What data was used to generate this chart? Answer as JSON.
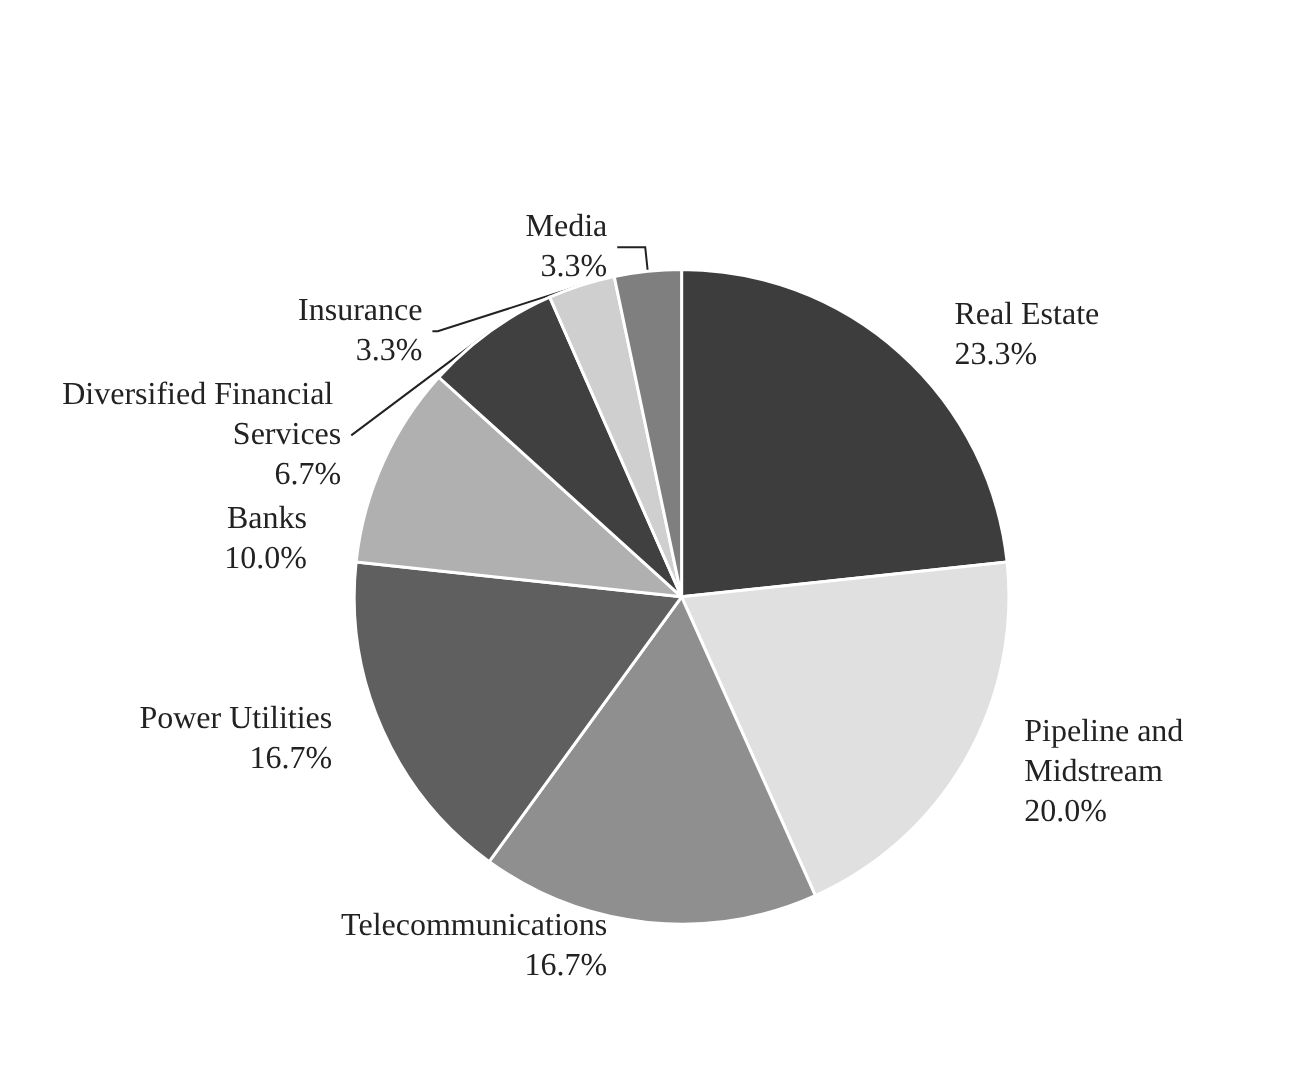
{
  "chart_data": {
    "type": "pie",
    "categories": [
      "Real Estate",
      "Pipeline and Midstream",
      "Telecommunications",
      "Power Utilities",
      "Banks",
      "Diversified Financial Services",
      "Insurance",
      "Media"
    ],
    "values": [
      23.3,
      20.0,
      16.7,
      16.7,
      10.0,
      6.7,
      3.3,
      3.3
    ],
    "value_labels": [
      "23.3%",
      "20.0%",
      "16.7%",
      "16.7%",
      "10.0%",
      "6.7%",
      "3.3%",
      "3.3%"
    ],
    "colors": [
      "#3d3d3d",
      "#e0e0e0",
      "#8f8f8f",
      "#5f5f5f",
      "#b0b0b0",
      "#404040",
      "#cfcfcf",
      "#7f7f7f"
    ],
    "legend": false
  }
}
